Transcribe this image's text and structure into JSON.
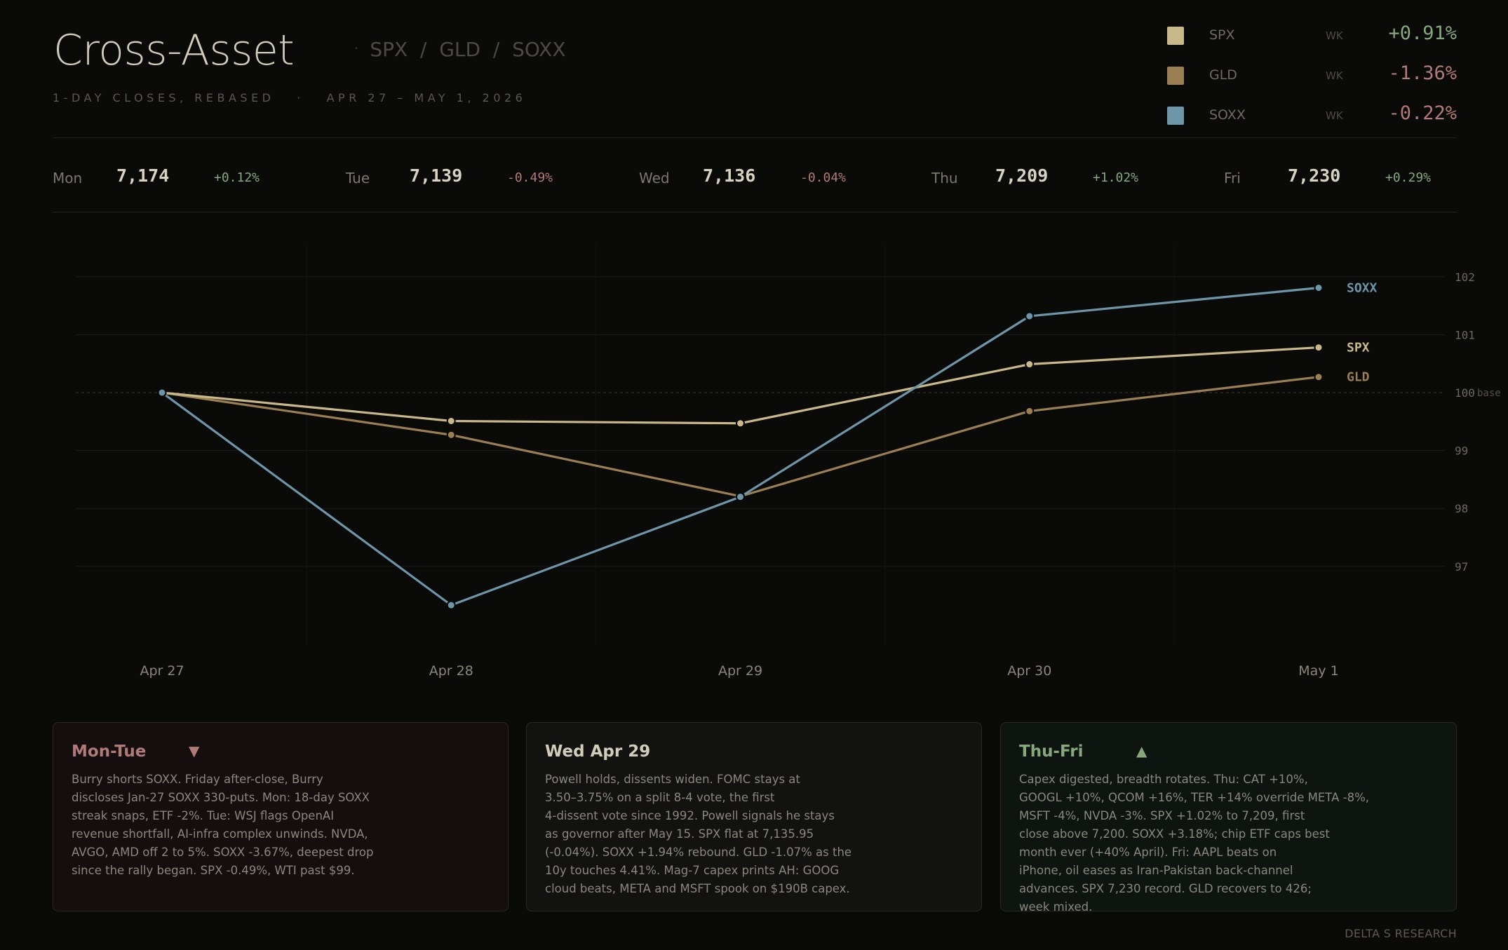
{
  "header": {
    "title": "Cross-Asset",
    "tickers": "SPX  /  GLD  /  SOXX",
    "tickers_dot": "·",
    "subtitle": "1-DAY CLOSES, REBASED   ·   APR 27 – MAY 1, 2026"
  },
  "legend": [
    {
      "name": "SPX",
      "period": "WK",
      "change": "+0.91%",
      "color": "#c9b88a",
      "change_color": "#86a87c"
    },
    {
      "name": "GLD",
      "period": "WK",
      "change": "-1.36%",
      "color": "#9a7f55",
      "change_color": "#b07a78"
    },
    {
      "name": "SOXX",
      "period": "WK",
      "change": "-0.22%",
      "color": "#6e95a8",
      "change_color": "#b07a78"
    }
  ],
  "daily": [
    {
      "day": "Mon",
      "value": "7,174",
      "change": "+0.12%",
      "color": "#86a87c"
    },
    {
      "day": "Tue",
      "value": "7,139",
      "change": "-0.49%",
      "color": "#b07a78"
    },
    {
      "day": "Wed",
      "value": "7,136",
      "change": "-0.04%",
      "color": "#b07a78"
    },
    {
      "day": "Thu",
      "value": "7,209",
      "change": "+1.02%",
      "color": "#86a87c"
    },
    {
      "day": "Fri",
      "value": "7,230",
      "change": "+0.29%",
      "color": "#86a87c"
    }
  ],
  "chart_data": {
    "type": "line",
    "x": [
      "Apr 27",
      "Apr 28",
      "Apr 29",
      "Apr 30",
      "May 1"
    ],
    "ylim": [
      95.7,
      102.5
    ],
    "yticks": [
      97,
      98,
      99,
      100,
      101,
      102
    ],
    "base_value": 100,
    "base_label": "base",
    "grid": true,
    "series": [
      {
        "name": "SOXX",
        "color": "#6e95a8",
        "values": [
          100.0,
          96.33,
          98.2,
          101.32,
          101.81
        ]
      },
      {
        "name": "SPX",
        "color": "#c9b88a",
        "values": [
          100.0,
          99.51,
          99.47,
          100.49,
          100.78
        ]
      },
      {
        "name": "GLD",
        "color": "#9a7f55",
        "values": [
          100.0,
          99.27,
          98.21,
          99.68,
          100.27
        ]
      }
    ]
  },
  "cards": [
    {
      "title": "Mon-Tue",
      "arrow": "▼",
      "title_color": "#b07a78",
      "body": "Burry shorts SOXX. Friday after-close, Burry\ndiscloses Jan-27 SOXX 330-puts. Mon: 18-day SOXX\nstreak snaps, ETF -2%. Tue: WSJ flags OpenAI\nrevenue shortfall, AI-infra complex unwinds. NVDA,\nAVGO, AMD off 2 to 5%. SOXX -3.67%, deepest drop\nsince the rally began. SPX -0.49%, WTI past $99."
    },
    {
      "title": "Wed Apr 29",
      "arrow": "",
      "title_color": "#d2ccbb",
      "body": "Powell holds, dissents widen. FOMC stays at\n3.50–3.75% on a split 8-4 vote, the first\n4-dissent vote since 1992. Powell signals he stays\nas governor after May 15. SPX flat at 7,135.95\n(-0.04%). SOXX +1.94% rebound. GLD -1.07% as the\n10y touches 4.41%. Mag-7 capex prints AH: GOOG\ncloud beats, META and MSFT spook on $190B capex."
    },
    {
      "title": "Thu-Fri",
      "arrow": "▲",
      "title_color": "#86a87c",
      "body": "Capex digested, breadth rotates. Thu: CAT +10%,\nGOOGL +10%, QCOM +16%, TER +14% override META -8%,\nMSFT -4%, NVDA -3%. SPX +1.02% to 7,209, first\nclose above 7,200. SOXX +3.18%; chip ETF caps best\nmonth ever (+40% April). Fri: AAPL beats on\niPhone, oil eases as Iran-Pakistan back-channel\nadvances. SPX 7,230 record. GLD recovers to 426;\nweek mixed."
    }
  ],
  "footer": "DELTA S RESEARCH"
}
